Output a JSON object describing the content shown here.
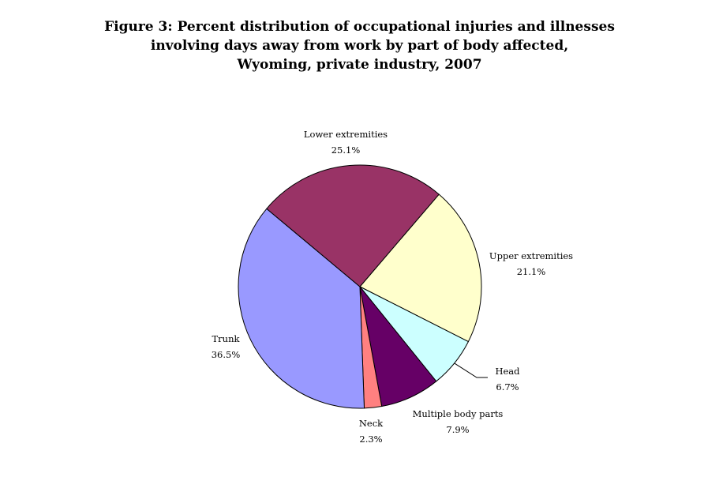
{
  "title_lines": [
    "Figure 3:  Percent distribution of occupational injuries and illnesses",
    "involving days away from work by part of body affected,",
    "Wyoming, private industry, 2007"
  ],
  "chart_data": {
    "type": "pie",
    "title": "Figure 3:  Percent distribution of occupational injuries and illnesses involving days away from work by part of body affected, Wyoming, private industry, 2007",
    "unit": "%",
    "slices": [
      {
        "label": "Upper extremities",
        "value": 21.1,
        "value_text": "21.1%",
        "color": "#ffffcc"
      },
      {
        "label": "Head",
        "value": 6.7,
        "value_text": "6.7%",
        "color": "#ccffff"
      },
      {
        "label": "Multiple body parts",
        "value": 7.9,
        "value_text": "7.9%",
        "color": "#660066"
      },
      {
        "label": "Neck",
        "value": 2.3,
        "value_text": "2.3%",
        "color": "#ff8080"
      },
      {
        "label": "Trunk",
        "value": 36.5,
        "value_text": "36.5%",
        "color": "#9999ff"
      },
      {
        "label": "Lower extremities",
        "value": 25.1,
        "value_text": "25.1%",
        "color": "#993366"
      }
    ]
  }
}
